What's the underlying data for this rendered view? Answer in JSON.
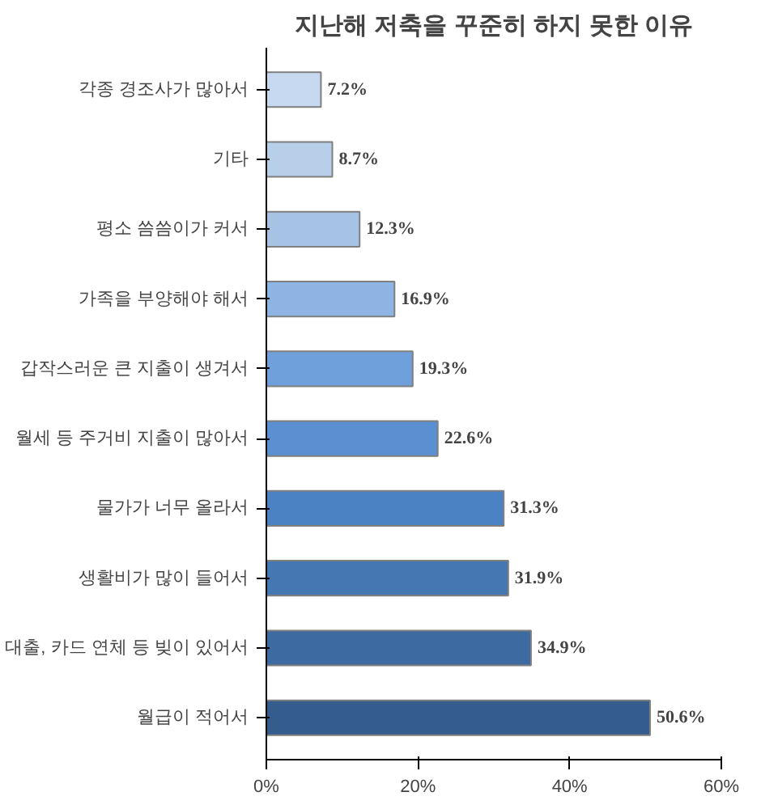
{
  "chart_data": {
    "type": "bar",
    "orientation": "horizontal",
    "title": "지난해 저축을 꾸준히 하지 못한 이유",
    "categories": [
      "각종 경조사가 많아서",
      "기타",
      "평소 씀씀이가 커서",
      "가족을 부양해야 해서",
      "갑작스러운 큰 지출이 생겨서",
      "월세 등 주거비 지출이 많아서",
      "물가가 너무 올라서",
      "생활비가 많이 들어서",
      "대출, 카드 연체 등 빚이 있어서",
      "월급이 적어서"
    ],
    "values": [
      7.2,
      8.7,
      12.3,
      16.9,
      19.3,
      22.6,
      31.3,
      31.9,
      34.9,
      50.6
    ],
    "value_labels": [
      "7.2%",
      "8.7%",
      "12.3%",
      "16.9%",
      "19.3%",
      "22.6%",
      "31.3%",
      "31.9%",
      "34.9%",
      "50.6%"
    ],
    "colors": [
      "#c6d9f1",
      "#b8cfea",
      "#a6c3e6",
      "#8eb4e3",
      "#6fa0dc",
      "#5a90d2",
      "#4a82c4",
      "#4577b3",
      "#3d6aa0",
      "#345d8e"
    ],
    "xlim": [
      0,
      60
    ],
    "xticks": [
      {
        "value": 0,
        "label": "0%"
      },
      {
        "value": 20,
        "label": "20%"
      },
      {
        "value": 40,
        "label": "40%"
      },
      {
        "value": 60,
        "label": "60%"
      }
    ],
    "grid": false
  }
}
